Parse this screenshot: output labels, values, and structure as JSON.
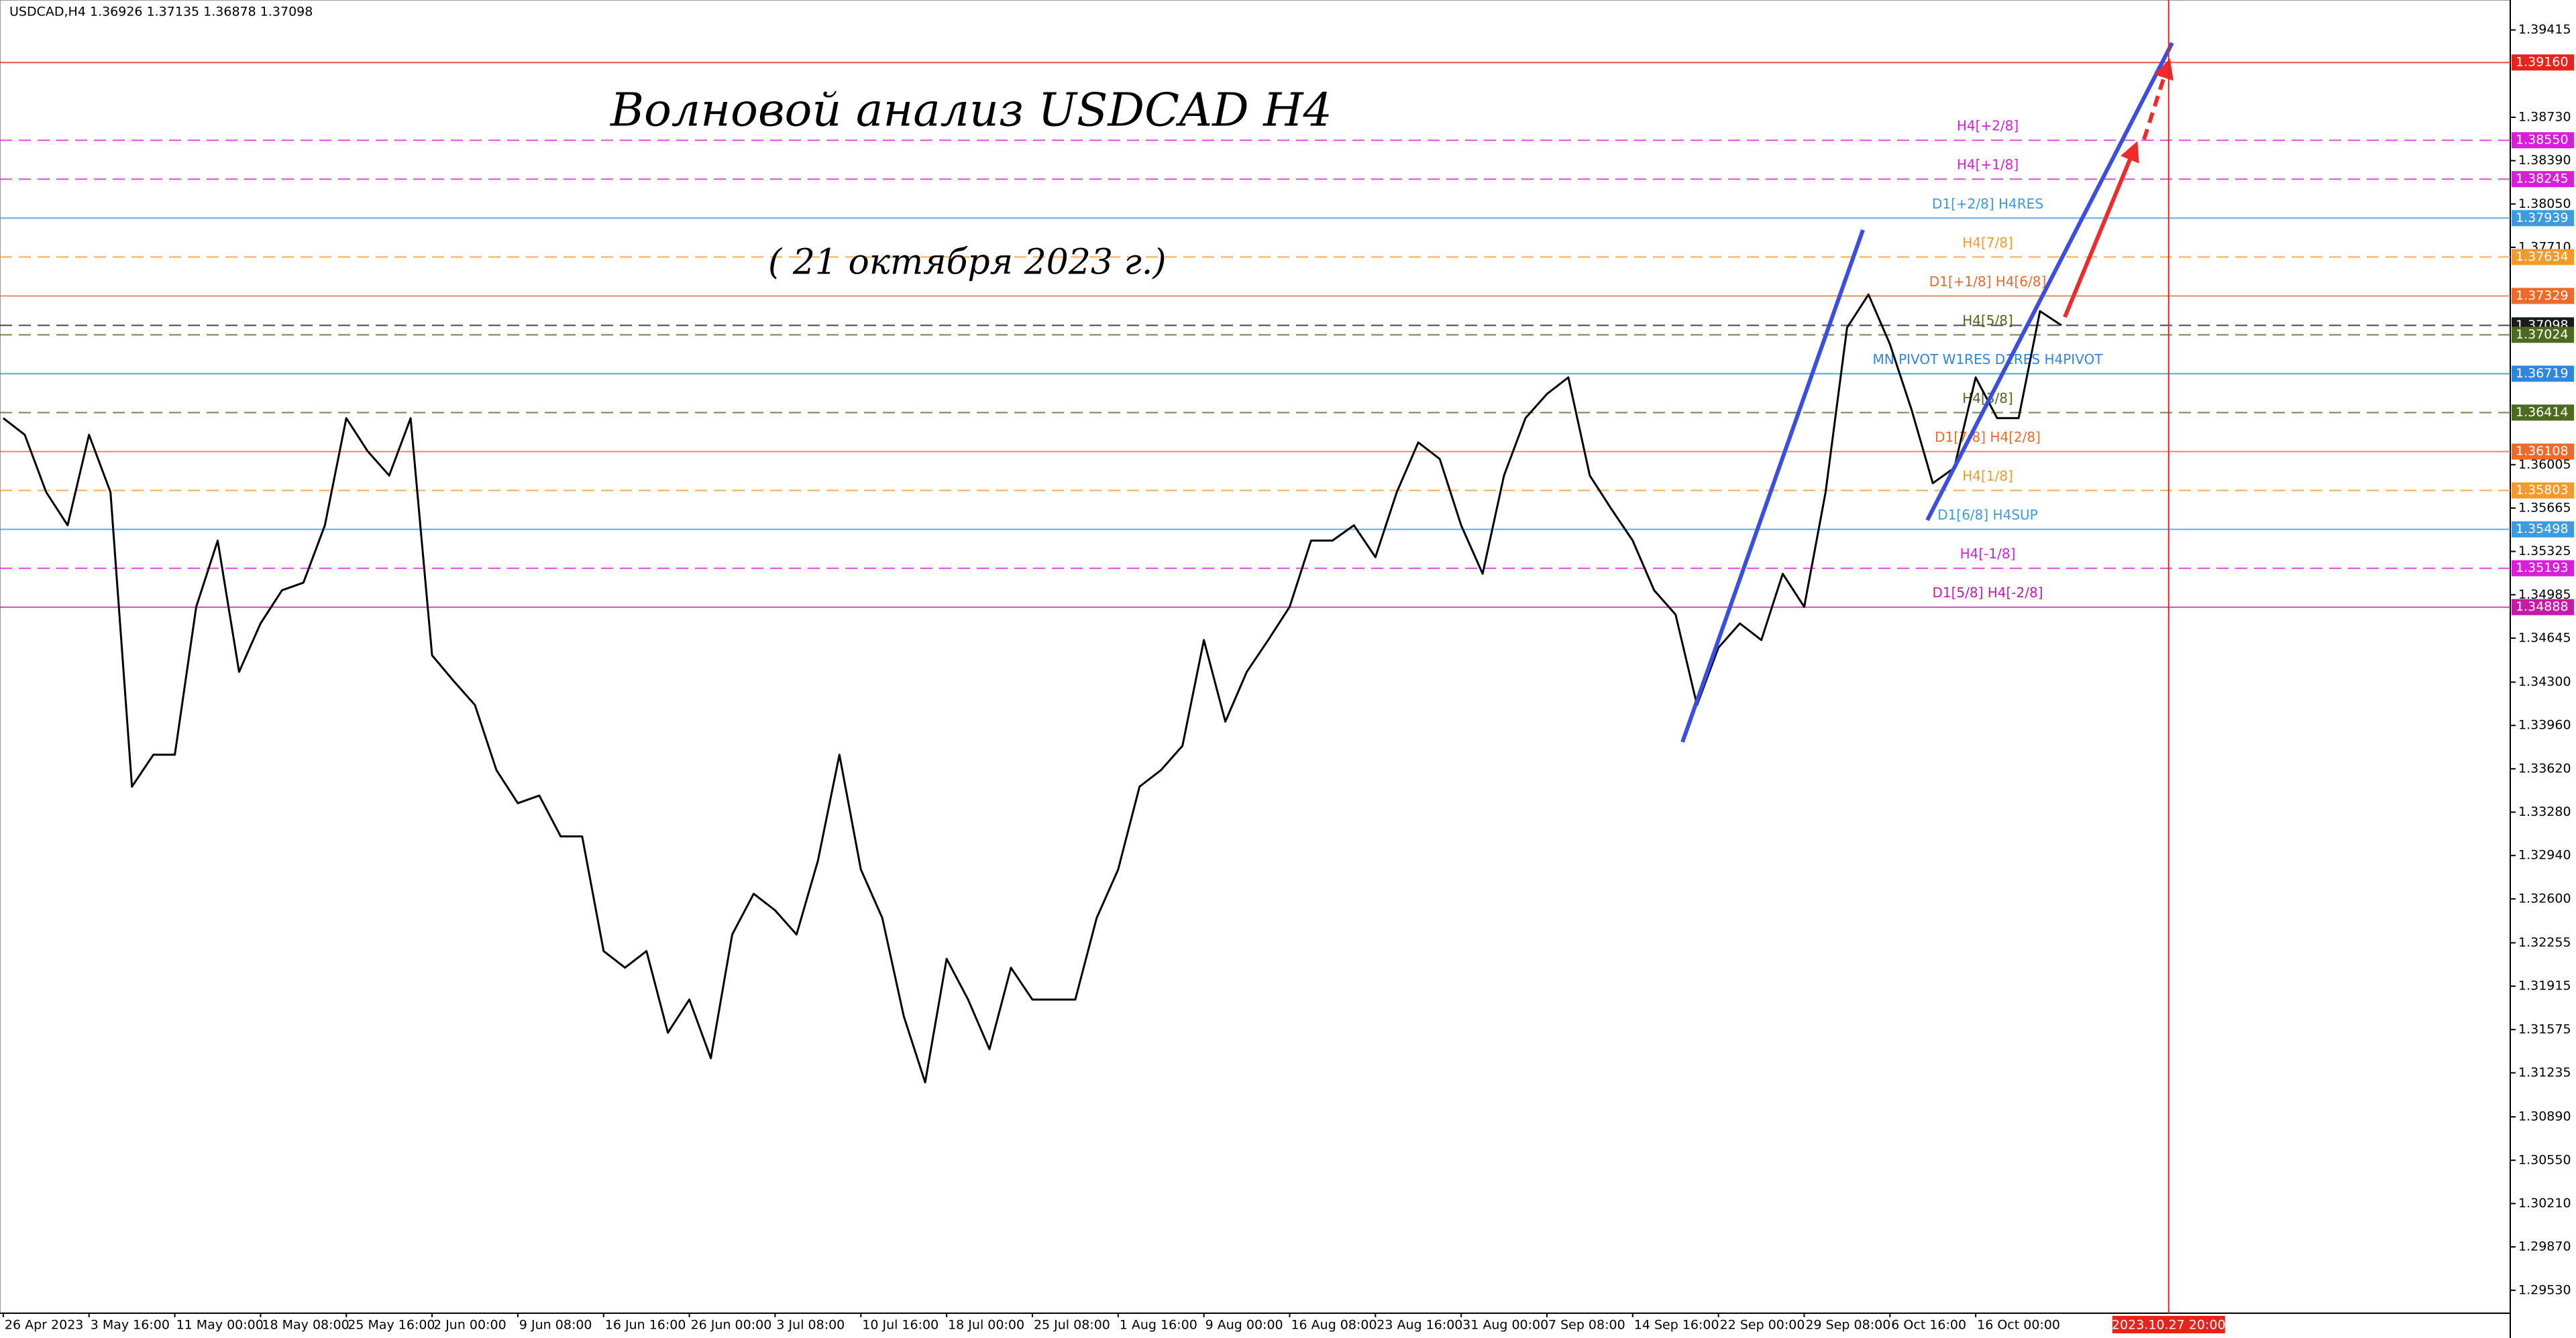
{
  "chart_data": {
    "type": "line",
    "header": "USDCAD,H4  1.36926 1.37135 1.36878 1.37098",
    "title": "Волновой анализ USDCAD H4",
    "subtitle": "( 21 октября 2023 г.)",
    "categories": [
      "26 Apr 2023",
      null,
      null,
      null,
      "3 May 16:00",
      null,
      null,
      null,
      "11 May 00:00",
      null,
      null,
      null,
      "18 May 08:00",
      null,
      null,
      null,
      "25 May 16:00",
      null,
      null,
      null,
      "2 Jun 00:00",
      null,
      null,
      null,
      "9 Jun 08:00",
      null,
      null,
      null,
      "16 Jun 16:00",
      null,
      null,
      null,
      "26 Jun 00:00",
      null,
      null,
      null,
      "3 Jul 08:00",
      null,
      null,
      null,
      "10 Jul 16:00",
      null,
      null,
      null,
      "18 Jul 00:00",
      null,
      null,
      null,
      "25 Jul 08:00",
      null,
      null,
      null,
      "1 Aug 16:00",
      null,
      null,
      null,
      "9 Aug 00:00",
      null,
      null,
      null,
      "16 Aug 08:00",
      null,
      null,
      null,
      "23 Aug 16:00",
      null,
      null,
      null,
      "31 Aug 00:00",
      null,
      null,
      null,
      "7 Sep 08:00",
      null,
      null,
      null,
      "14 Sep 16:00",
      null,
      null,
      null,
      "22 Sep 00:00",
      null,
      null,
      null,
      "29 Sep 08:00",
      null,
      null,
      null,
      "6 Oct 16:00",
      null,
      null,
      null,
      "16 Oct 00:00",
      null,
      null,
      null,
      null,
      null,
      null,
      null,
      null,
      "2023.10.27 20:00"
    ],
    "series": [
      {
        "name": "USDCAD",
        "color": "#000000",
        "values": [
          1.3637,
          1.3624,
          1.3579,
          1.3553,
          1.3624,
          1.3579,
          1.3348,
          1.3373,
          1.3373,
          1.3489,
          1.3541,
          1.3438,
          1.3476,
          1.3502,
          1.3508,
          1.3553,
          1.3637,
          1.3611,
          1.3592,
          1.3637,
          1.3451,
          1.3431,
          1.3412,
          1.3361,
          1.3335,
          1.3341,
          1.3309,
          1.3309,
          1.3219,
          1.3206,
          1.3219,
          1.3155,
          1.3181,
          1.3135,
          1.3232,
          1.3264,
          1.3251,
          1.3232,
          1.329,
          1.3373,
          1.3283,
          1.3245,
          1.3168,
          1.3116,
          1.3213,
          1.3181,
          1.3142,
          1.3206,
          1.3181,
          1.3181,
          1.3181,
          1.3245,
          1.3283,
          1.3348,
          1.3361,
          1.338,
          1.3463,
          1.3399,
          1.3438,
          1.3463,
          1.3489,
          1.3541,
          1.3541,
          1.3553,
          1.3528,
          1.3579,
          1.3618,
          1.3605,
          1.3553,
          1.3515,
          1.3592,
          1.3637,
          1.3656,
          1.3669,
          1.3592,
          1.3566,
          1.3541,
          1.3502,
          1.3483,
          1.3412,
          1.3457,
          1.3476,
          1.3463,
          1.3515,
          1.3489,
          1.3579,
          1.3708,
          1.3734,
          1.3695,
          1.3644,
          1.3586,
          1.3598,
          1.3669,
          1.3637,
          1.3637,
          1.3721,
          1.37098,
          null,
          null,
          null,
          null,
          null
        ]
      }
    ],
    "ylim": [
      1.2935,
      1.3965
    ],
    "yticks": [
      1.39415,
      {
        "value": 1.3873,
        "label": "1.38730"
      },
      {
        "value": 1.3839,
        "label": "1.38390"
      },
      {
        "value": 1.3805,
        "label": "1.38050"
      },
      {
        "value": 1.3771,
        "label": "1.37710"
      },
      1.36005,
      1.35665,
      1.35325,
      1.34985,
      1.34645,
      {
        "value": 1.343,
        "label": "1.34300"
      },
      {
        "value": 1.3396,
        "label": "1.33960"
      },
      {
        "value": 1.3362,
        "label": "1.33620"
      },
      {
        "value": 1.3328,
        "label": "1.33280"
      },
      {
        "value": 1.3294,
        "label": "1.32940"
      },
      {
        "value": 1.326,
        "label": "1.32600"
      },
      1.32255,
      1.31915,
      1.31575,
      1.31235,
      {
        "value": 1.3089,
        "label": "1.30890"
      },
      {
        "value": 1.3055,
        "label": "1.30550"
      },
      {
        "value": 1.3021,
        "label": "1.30210"
      },
      {
        "value": 1.2987,
        "label": "1.29870"
      },
      {
        "value": 1.2953,
        "label": "1.29530"
      }
    ],
    "grid": false,
    "levels": {
      "values": [
        1.3916,
        1.3855,
        1.38245,
        1.37939,
        1.37634,
        1.37329,
        1.37098,
        1.37024,
        1.36719,
        1.36414,
        1.36108,
        1.35803,
        1.35498,
        1.35193,
        1.34888
      ],
      "value_labels": [
        "1.39160",
        "1.38550",
        "1.38245",
        "1.37939",
        "1.37634",
        "1.37329",
        "1.37098",
        "1.37024",
        "1.36719",
        "1.36414",
        "1.36108",
        "1.35803",
        "1.35498",
        "1.35193",
        "1.34888"
      ],
      "names": [
        null,
        "H4[+2/8]",
        "H4[+1/8]",
        "D1[+2/8] H4RES",
        "H4[7/8]",
        "D1[+1/8] H4[6/8]",
        null,
        "H4[5/8]",
        "MN PIVOT W1RES D1RES H4PIVOT",
        "H4[3/8]",
        "D1[7/8] H4[2/8]",
        "H4[1/8]",
        "D1[6/8] H4SUP",
        "H4[-1/8]",
        "D1[5/8] H4[-2/8]"
      ],
      "colors": [
        "#e8231b",
        "#d81ed8",
        "#d81ed8",
        "#3a9be0",
        "#f39a2b",
        "#ee6a2a",
        "#1a1a1a",
        "#4d6b1e",
        "#2e86de",
        "#4d6b1e",
        "#ee6a2a",
        "#f39a2b",
        "#3a9be0",
        "#d81ed8",
        "#c81aa8"
      ],
      "dashed": [
        false,
        true,
        true,
        false,
        true,
        false,
        true,
        true,
        false,
        true,
        false,
        true,
        false,
        true,
        false
      ]
    }
  }
}
